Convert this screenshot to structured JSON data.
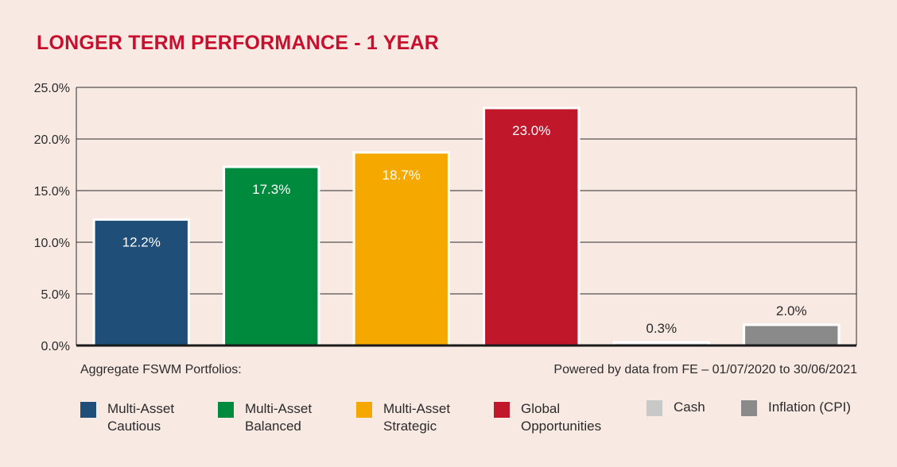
{
  "title": "LONGER TERM PERFORMANCE - 1 YEAR",
  "notes": {
    "left": "Aggregate FSWM Portfolios:",
    "right": "Powered by data from FE – 01/07/2020 to 30/06/2021"
  },
  "colors": {
    "background": "#f9e9e3",
    "title": "#c8102e",
    "grid": "#2b2b2b"
  },
  "legend": [
    {
      "line1": "Multi-Asset",
      "line2": "Cautious",
      "color": "#1f4e79"
    },
    {
      "line1": "Multi-Asset",
      "line2": "Balanced",
      "color": "#008a3e"
    },
    {
      "line1": "Multi-Asset",
      "line2": "Strategic",
      "color": "#f5a800"
    },
    {
      "line1": "Global",
      "line2": "Opportunities",
      "color": "#c0172a"
    },
    {
      "line1": "Cash",
      "line2": "",
      "color": "#c8c8c8"
    },
    {
      "line1": "Inflation (CPI)",
      "line2": "",
      "color": "#8a8a8a"
    }
  ],
  "chart_data": {
    "type": "bar",
    "categories": [
      "Multi-Asset Cautious",
      "Multi-Asset Balanced",
      "Multi-Asset Strategic",
      "Global Opportunities",
      "Cash",
      "Inflation (CPI)"
    ],
    "values": [
      12.2,
      17.3,
      18.7,
      23.0,
      0.3,
      2.0
    ],
    "data_labels": [
      "12.2%",
      "17.3%",
      "18.7%",
      "23.0%",
      "0.3%",
      "2.0%"
    ],
    "colors": [
      "#1f4e79",
      "#008a3e",
      "#f5a800",
      "#c0172a",
      "#dcdcdc",
      "#8a8a8a"
    ],
    "label_colors": [
      "#ffffff",
      "#ffffff",
      "#ffffff",
      "#ffffff",
      "#2b2b2b",
      "#2b2b2b"
    ],
    "yticks": [
      "0.0%",
      "5.0%",
      "10.0%",
      "15.0%",
      "20.0%",
      "25.0%"
    ],
    "ylim": [
      0,
      25
    ],
    "ystep": 5,
    "grid": true,
    "legend_position": "bottom",
    "title": "LONGER TERM PERFORMANCE - 1 YEAR",
    "xlabel": "",
    "ylabel": ""
  }
}
